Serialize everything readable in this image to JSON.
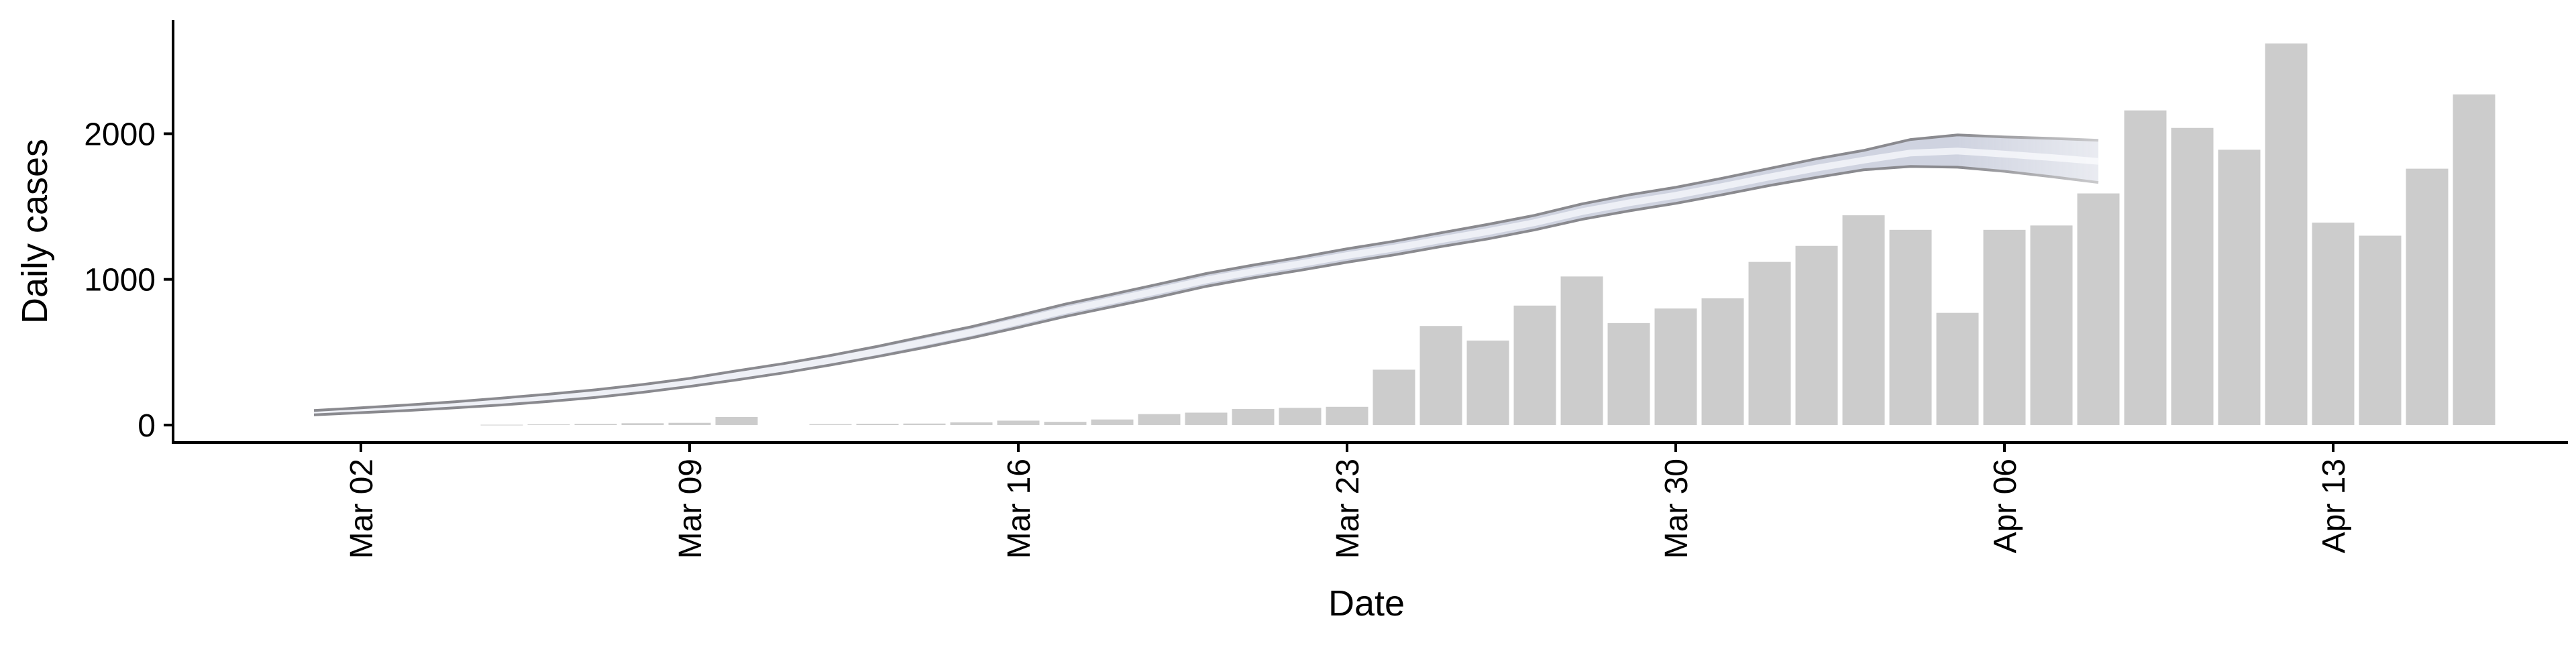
{
  "chart_data": {
    "type": "bar",
    "title": "",
    "xlabel": "Date",
    "ylabel": "Daily cases",
    "x_axis": {
      "type": "date",
      "range": [
        "2020-02-27",
        "2020-04-18"
      ],
      "ticks": [
        "2020-03-02",
        "2020-03-09",
        "2020-03-16",
        "2020-03-23",
        "2020-03-30",
        "2020-04-06",
        "2020-04-13"
      ],
      "tick_labels": [
        "Mar 02",
        "Mar 09",
        "Mar 16",
        "Mar 23",
        "Mar 30",
        "Apr 06",
        "Apr 13"
      ],
      "tick_label_rotation": "vertical"
    },
    "y_axis": {
      "range": [
        -120,
        2780
      ],
      "ticks": [
        0,
        1000,
        2000
      ],
      "tick_labels": [
        "0",
        "1000",
        "2000"
      ]
    },
    "grid": false,
    "legend": "none",
    "series": [
      {
        "type": "bar",
        "dates": [
          "2020-03-05",
          "2020-03-06",
          "2020-03-07",
          "2020-03-08",
          "2020-03-09",
          "2020-03-10",
          "2020-03-11",
          "2020-03-12",
          "2020-03-13",
          "2020-03-14",
          "2020-03-15",
          "2020-03-16",
          "2020-03-17",
          "2020-03-18",
          "2020-03-19",
          "2020-03-20",
          "2020-03-21",
          "2020-03-22",
          "2020-03-23",
          "2020-03-24",
          "2020-03-25",
          "2020-03-26",
          "2020-03-27",
          "2020-03-28",
          "2020-03-29",
          "2020-03-30",
          "2020-03-31",
          "2020-04-01",
          "2020-04-02",
          "2020-04-03",
          "2020-04-04",
          "2020-04-05",
          "2020-04-06",
          "2020-04-07",
          "2020-04-08",
          "2020-04-09",
          "2020-04-10",
          "2020-04-11",
          "2020-04-12",
          "2020-04-13",
          "2020-04-14",
          "2020-04-15",
          "2020-04-16",
          "2020-04-17"
        ],
        "values": [
          2,
          5,
          8,
          12,
          15,
          55,
          0,
          6,
          9,
          10,
          18,
          30,
          22,
          38,
          75,
          85,
          110,
          118,
          125,
          380,
          680,
          580,
          820,
          1020,
          700,
          800,
          870,
          1120,
          1230,
          1440,
          1340,
          770,
          1340,
          1370,
          1590,
          2160,
          2040,
          1890,
          2620,
          1390,
          1300,
          1760,
          2270,
          0
        ]
      },
      {
        "type": "band",
        "dates": [
          "2020-03-01",
          "2020-03-02",
          "2020-03-03",
          "2020-03-04",
          "2020-03-05",
          "2020-03-06",
          "2020-03-07",
          "2020-03-08",
          "2020-03-09",
          "2020-03-10",
          "2020-03-11",
          "2020-03-12",
          "2020-03-13",
          "2020-03-14",
          "2020-03-15",
          "2020-03-16",
          "2020-03-17",
          "2020-03-18",
          "2020-03-19",
          "2020-03-20",
          "2020-03-21",
          "2020-03-22",
          "2020-03-23",
          "2020-03-24",
          "2020-03-25",
          "2020-03-26",
          "2020-03-27",
          "2020-03-28",
          "2020-03-29",
          "2020-03-30",
          "2020-03-31",
          "2020-04-01",
          "2020-04-02",
          "2020-04-03",
          "2020-04-04",
          "2020-04-05",
          "2020-04-06",
          "2020-04-07",
          "2020-04-08"
        ],
        "lower": [
          70,
          85,
          100,
          118,
          138,
          162,
          190,
          225,
          265,
          310,
          358,
          412,
          470,
          532,
          598,
          670,
          745,
          812,
          880,
          952,
          1010,
          1062,
          1118,
          1168,
          1225,
          1278,
          1340,
          1412,
          1470,
          1522,
          1582,
          1645,
          1700,
          1752,
          1775,
          1770,
          1742,
          1705,
          1665
        ],
        "upper": [
          100,
          118,
          138,
          160,
          185,
          212,
          242,
          278,
          320,
          372,
          422,
          478,
          540,
          608,
          675,
          752,
          830,
          898,
          968,
          1040,
          1098,
          1152,
          1210,
          1262,
          1320,
          1378,
          1440,
          1518,
          1580,
          1632,
          1695,
          1762,
          1828,
          1885,
          1960,
          1992,
          1978,
          1968,
          1955
        ],
        "opacity_fade_after": "2020-04-05"
      }
    ],
    "colors": {
      "bars": "#cccccc",
      "band_fill": "#c7cbdb",
      "band_center": "#eef0f6",
      "band_edge": "#8a8a8f",
      "axis": "#000000"
    }
  }
}
